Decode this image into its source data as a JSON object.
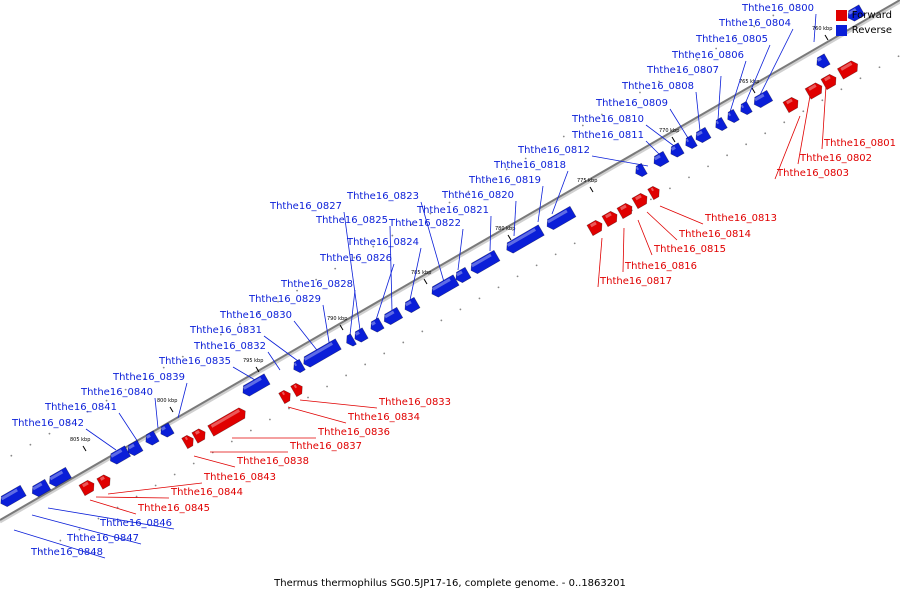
{
  "colors": {
    "forward": "#e00000",
    "reverse": "#0a1ed8",
    "axis": "#999999"
  },
  "legend": [
    {
      "label": "Forward",
      "color": "#e00000"
    },
    {
      "label": "Reverse",
      "color": "#0a1ed8"
    }
  ],
  "caption": "Thermus thermophilus SG0.5JP17-16, complete genome. - 0..1863201",
  "ruler": {
    "ticks": [
      "760 kbp",
      "765 kbp",
      "770 kbp",
      "775 kbp",
      "780 kbp",
      "785 kbp",
      "790 kbp",
      "795 kbp",
      "800 kbp",
      "805 kbp"
    ]
  },
  "reverse_genes": [
    "Ththe16_0800",
    "Ththe16_0804",
    "Ththe16_0805",
    "Ththe16_0806",
    "Ththe16_0807",
    "Ththe16_0808",
    "Ththe16_0809",
    "Ththe16_0810",
    "Ththe16_0811",
    "Ththe16_0812",
    "Ththe16_0818",
    "Ththe16_0819",
    "Ththe16_0820",
    "Ththe16_0821",
    "Ththe16_0822",
    "Ththe16_0823",
    "Ththe16_0824",
    "Ththe16_0825",
    "Ththe16_0826",
    "Ththe16_0827",
    "Ththe16_0828",
    "Ththe16_0829",
    "Ththe16_0830",
    "Ththe16_0831",
    "Ththe16_0832",
    "Ththe16_0835",
    "Ththe16_0839",
    "Ththe16_0840",
    "Ththe16_0841",
    "Ththe16_0842",
    "Ththe16_0846",
    "Ththe16_0847",
    "Ththe16_0848"
  ],
  "forward_genes": [
    "Ththe16_0801",
    "Ththe16_0802",
    "Ththe16_0803",
    "Ththe16_0813",
    "Ththe16_0814",
    "Ththe16_0815",
    "Ththe16_0816",
    "Ththe16_0817",
    "Ththe16_0833",
    "Ththe16_0834",
    "Ththe16_0836",
    "Ththe16_0837",
    "Ththe16_0838",
    "Ththe16_0843",
    "Ththe16_0844",
    "Ththe16_0845"
  ]
}
